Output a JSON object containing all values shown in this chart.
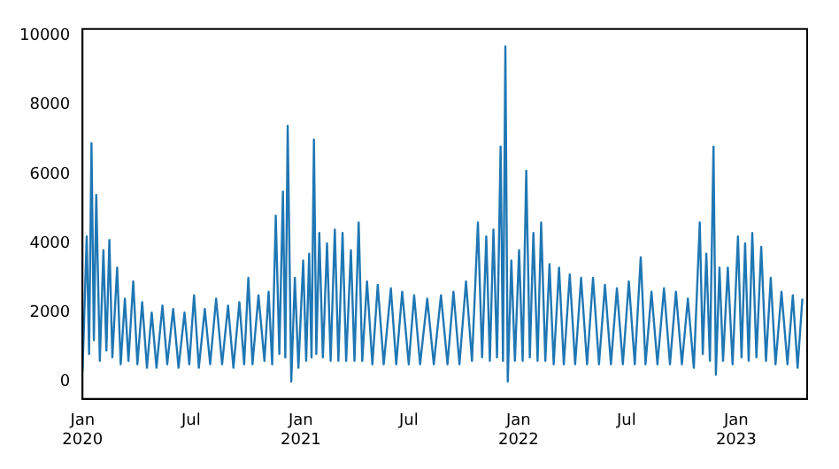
{
  "chart_data": {
    "type": "line",
    "color": "#1f77b4",
    "line_style": "solid",
    "x": [
      "2020-01-01",
      "2020-01-08",
      "2020-01-12",
      "2020-01-16",
      "2020-01-20",
      "2020-01-24",
      "2020-01-30",
      "2020-02-05",
      "2020-02-10",
      "2020-02-15",
      "2020-02-20",
      "2020-02-28",
      "2020-03-05",
      "2020-03-12",
      "2020-03-18",
      "2020-03-26",
      "2020-04-02",
      "2020-04-10",
      "2020-04-18",
      "2020-04-26",
      "2020-05-04",
      "2020-05-14",
      "2020-05-22",
      "2020-06-01",
      "2020-06-10",
      "2020-06-20",
      "2020-06-28",
      "2020-07-06",
      "2020-07-14",
      "2020-07-24",
      "2020-08-02",
      "2020-08-12",
      "2020-08-22",
      "2020-09-01",
      "2020-09-10",
      "2020-09-20",
      "2020-09-28",
      "2020-10-05",
      "2020-10-12",
      "2020-10-22",
      "2020-11-01",
      "2020-11-08",
      "2020-11-14",
      "2020-11-20",
      "2020-11-26",
      "2020-12-02",
      "2020-12-06",
      "2020-12-10",
      "2020-12-16",
      "2020-12-22",
      "2020-12-28",
      "2021-01-05",
      "2021-01-10",
      "2021-01-15",
      "2021-01-19",
      "2021-01-23",
      "2021-01-27",
      "2021-02-01",
      "2021-02-07",
      "2021-02-14",
      "2021-02-20",
      "2021-02-27",
      "2021-03-05",
      "2021-03-12",
      "2021-03-18",
      "2021-03-26",
      "2021-04-01",
      "2021-04-08",
      "2021-04-14",
      "2021-04-22",
      "2021-05-01",
      "2021-05-10",
      "2021-05-20",
      "2021-06-01",
      "2021-06-10",
      "2021-06-20",
      "2021-07-01",
      "2021-07-10",
      "2021-07-20",
      "2021-08-01",
      "2021-08-12",
      "2021-08-24",
      "2021-09-04",
      "2021-09-14",
      "2021-09-24",
      "2021-10-05",
      "2021-10-15",
      "2021-10-25",
      "2021-11-01",
      "2021-11-08",
      "2021-11-14",
      "2021-11-20",
      "2021-11-26",
      "2021-12-02",
      "2021-12-06",
      "2021-12-10",
      "2021-12-14",
      "2021-12-20",
      "2021-12-26",
      "2022-01-02",
      "2022-01-08",
      "2022-01-14",
      "2022-01-20",
      "2022-01-26",
      "2022-02-02",
      "2022-02-08",
      "2022-02-15",
      "2022-02-22",
      "2022-03-01",
      "2022-03-10",
      "2022-03-18",
      "2022-03-28",
      "2022-04-06",
      "2022-04-16",
      "2022-04-26",
      "2022-05-06",
      "2022-05-16",
      "2022-05-26",
      "2022-06-05",
      "2022-06-15",
      "2022-06-25",
      "2022-07-05",
      "2022-07-15",
      "2022-07-25",
      "2022-08-02",
      "2022-08-12",
      "2022-08-22",
      "2022-09-02",
      "2022-09-12",
      "2022-09-22",
      "2022-10-02",
      "2022-10-12",
      "2022-10-22",
      "2022-11-01",
      "2022-11-06",
      "2022-11-12",
      "2022-11-18",
      "2022-11-24",
      "2022-11-28",
      "2022-12-04",
      "2022-12-10",
      "2022-12-18",
      "2022-12-26",
      "2023-01-04",
      "2023-01-10",
      "2023-01-16",
      "2023-01-22",
      "2023-01-28",
      "2023-02-04",
      "2023-02-12",
      "2023-02-20",
      "2023-02-28",
      "2023-03-08",
      "2023-03-18",
      "2023-03-28",
      "2023-04-06",
      "2023-04-14",
      "2023-04-22"
    ],
    "values": [
      300,
      4200,
      800,
      6900,
      1200,
      5400,
      600,
      3800,
      900,
      4100,
      700,
      3300,
      500,
      2400,
      600,
      2900,
      500,
      2300,
      400,
      2000,
      400,
      2200,
      500,
      2100,
      400,
      2000,
      500,
      2500,
      400,
      2100,
      500,
      2400,
      500,
      2200,
      400,
      2300,
      500,
      3000,
      500,
      2500,
      600,
      2600,
      500,
      4800,
      800,
      5500,
      700,
      7400,
      0,
      3000,
      400,
      3500,
      600,
      3700,
      700,
      7000,
      800,
      4300,
      700,
      4000,
      600,
      4400,
      600,
      4300,
      600,
      3800,
      600,
      4600,
      600,
      2900,
      500,
      2800,
      500,
      2700,
      500,
      2600,
      500,
      2500,
      500,
      2400,
      500,
      2500,
      500,
      2600,
      500,
      2900,
      600,
      4600,
      700,
      4200,
      600,
      4400,
      700,
      6800,
      600,
      9700,
      0,
      3500,
      600,
      3800,
      600,
      6100,
      700,
      4300,
      600,
      4600,
      600,
      3400,
      500,
      3300,
      500,
      3100,
      500,
      3000,
      500,
      3000,
      500,
      2800,
      500,
      2700,
      500,
      2900,
      500,
      3600,
      500,
      2600,
      500,
      2700,
      500,
      2600,
      500,
      2400,
      400,
      4600,
      800,
      3700,
      600,
      6800,
      200,
      3300,
      600,
      3300,
      500,
      4200,
      700,
      4000,
      600,
      4300,
      700,
      3900,
      600,
      3000,
      500,
      2600,
      500,
      2500,
      400,
      2400
    ],
    "xlim": [
      "2020-01-01",
      "2023-04-30"
    ],
    "xticks": [
      {
        "value": "2020-01-01",
        "label": "Jan\n2020"
      },
      {
        "value": "2020-07-01",
        "label": "Jul"
      },
      {
        "value": "2021-01-01",
        "label": "Jan\n2021"
      },
      {
        "value": "2021-07-01",
        "label": "Jul"
      },
      {
        "value": "2022-01-01",
        "label": "Jan\n2022"
      },
      {
        "value": "2022-07-01",
        "label": "Jul"
      },
      {
        "value": "2023-01-01",
        "label": "Jan\n2023"
      }
    ],
    "ylim": [
      -500,
      10200
    ],
    "yticks": [
      0,
      2000,
      4000,
      6000,
      8000,
      10000
    ],
    "grid": false
  }
}
